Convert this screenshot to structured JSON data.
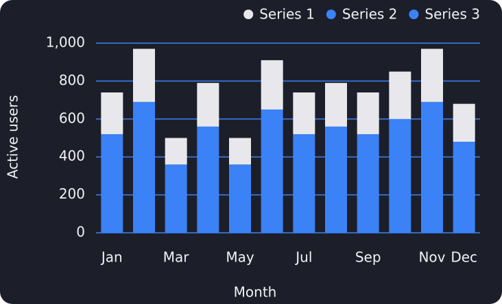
{
  "chart_data": {
    "type": "bar",
    "stacked": true,
    "x_label": "Month",
    "y_label": "Active users",
    "categories": [
      "Jan",
      null,
      "Mar",
      null,
      "May",
      null,
      "Jul",
      null,
      "Sep",
      null,
      "Nov",
      "Dec"
    ],
    "series": [
      {
        "name": "Series 1",
        "color": "#e8e8ec",
        "values": [
          220,
          280,
          140,
          230,
          140,
          260,
          220,
          230,
          220,
          250,
          280,
          200
        ]
      },
      {
        "name": "Series 2",
        "color": "#3b82f6",
        "values": [
          520,
          690,
          360,
          560,
          360,
          650,
          520,
          560,
          520,
          600,
          690,
          480
        ]
      },
      {
        "name": "Series 3",
        "color": "#3b82f6",
        "values": [
          0,
          0,
          0,
          0,
          0,
          0,
          0,
          0,
          0,
          0,
          0,
          0
        ]
      }
    ],
    "stack_order": [
      1,
      2,
      0
    ],
    "ylim": [
      0,
      1000
    ],
    "yticks": [
      0,
      200,
      400,
      600,
      800,
      {
        "value": 1000,
        "label": "1,000"
      }
    ],
    "grid": true,
    "grid_color": "#3b82f6",
    "legend": "top-right"
  }
}
